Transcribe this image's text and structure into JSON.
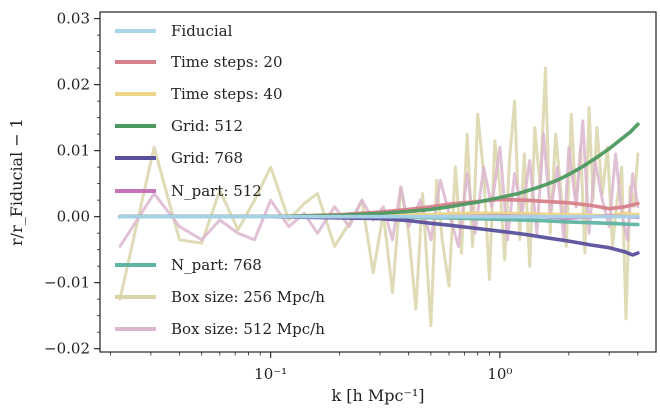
{
  "chart_data": {
    "type": "line",
    "xlabel": "k [h Mpc⁻¹]",
    "ylabel": "r/r_Fiducial − 1",
    "xscale": "log",
    "xlim": [
      0.018,
      4.8
    ],
    "ylim": [
      -0.0205,
      0.031
    ],
    "xticks": [
      {
        "value": 0.1,
        "label": "10⁻¹"
      },
      {
        "value": 1,
        "label": "10⁰"
      }
    ],
    "yticks": [
      {
        "value": -0.02,
        "label": "−0.02"
      },
      {
        "value": -0.01,
        "label": "−0.01"
      },
      {
        "value": 0.0,
        "label": "0.00"
      },
      {
        "value": 0.01,
        "label": "0.01"
      },
      {
        "value": 0.02,
        "label": "0.02"
      },
      {
        "value": 0.03,
        "label": "0.03"
      }
    ],
    "grid": false,
    "legend_position": "left",
    "series": [
      {
        "name": "Fiducial",
        "color": "#a9d4ea",
        "x": [
          0.022,
          0.1,
          1,
          4
        ],
        "y": [
          0,
          0,
          0,
          0
        ]
      },
      {
        "name": "Time steps: 20",
        "color": "#d77f8a",
        "x": [
          0.022,
          0.1,
          0.2,
          0.3,
          0.4,
          0.5,
          0.6,
          0.8,
          1.0,
          1.3,
          1.6,
          2.0,
          2.5,
          3.0,
          3.5,
          4.0
        ],
        "y": [
          0,
          0,
          0.0003,
          0.0007,
          0.0011,
          0.0015,
          0.0019,
          0.0023,
          0.0026,
          0.0025,
          0.0023,
          0.0021,
          0.0017,
          0.0012,
          0.0015,
          0.002
        ]
      },
      {
        "name": "Time steps: 40",
        "color": "#eed487",
        "x": [
          0.022,
          0.1,
          0.3,
          0.5,
          0.7,
          1.0,
          1.5,
          2.0,
          2.5,
          3.0,
          3.5,
          4.0
        ],
        "y": [
          0,
          0,
          0.0002,
          0.0003,
          0.0005,
          0.0005,
          0.0004,
          0.0003,
          0.0002,
          0.0001,
          0.0005,
          0.0003
        ]
      },
      {
        "name": "Grid: 512",
        "color": "#4d9961",
        "x": [
          0.022,
          0.1,
          0.2,
          0.3,
          0.4,
          0.5,
          0.6,
          0.7,
          0.8,
          1.0,
          1.2,
          1.4,
          1.6,
          1.8,
          2.0,
          2.3,
          2.6,
          3.0,
          3.4,
          3.7,
          4.0
        ],
        "y": [
          0,
          0,
          0.0002,
          0.0005,
          0.0008,
          0.0011,
          0.0015,
          0.0019,
          0.0022,
          0.0029,
          0.0035,
          0.0042,
          0.0049,
          0.0056,
          0.0064,
          0.0076,
          0.0088,
          0.0103,
          0.0118,
          0.0128,
          0.014
        ]
      },
      {
        "name": "Grid: 768",
        "color": "#58509c",
        "x": [
          0.022,
          0.1,
          0.3,
          0.4,
          0.5,
          0.6,
          0.8,
          1.0,
          1.3,
          1.6,
          2.0,
          2.5,
          3.0,
          3.5,
          3.8,
          4.0
        ],
        "y": [
          0,
          0,
          -0.0003,
          -0.0006,
          -0.001,
          -0.0013,
          -0.0018,
          -0.0022,
          -0.0027,
          -0.0032,
          -0.0037,
          -0.0043,
          -0.0047,
          -0.0053,
          -0.0058,
          -0.0055
        ]
      },
      {
        "name": "N_part: 512",
        "color": "#c673b7",
        "x": [
          0.022,
          0.1,
          0.3,
          0.6,
          1.0,
          1.5,
          2.0,
          3.0,
          4.0
        ],
        "y": [
          0,
          0,
          -0.0001,
          0,
          0.0001,
          0,
          -0.0002,
          0.0001,
          -0.0001
        ]
      },
      {
        "name": "N_part: 768",
        "color": "#5fb4a3",
        "x": [
          0.022,
          0.1,
          0.3,
          0.6,
          1.0,
          1.5,
          2.0,
          3.0,
          4.0
        ],
        "y": [
          0,
          0,
          0,
          -0.0002,
          -0.0004,
          -0.0006,
          -0.0008,
          -0.001,
          -0.0012
        ]
      },
      {
        "name": "Box size: 256 Mpc/h",
        "color": "#d9d5a9",
        "x": [
          0.022,
          0.031,
          0.04,
          0.05,
          0.06,
          0.072,
          0.085,
          0.1,
          0.12,
          0.14,
          0.16,
          0.19,
          0.22,
          0.25,
          0.28,
          0.31,
          0.34,
          0.37,
          0.4,
          0.43,
          0.46,
          0.5,
          0.53,
          0.56,
          0.6,
          0.64,
          0.68,
          0.72,
          0.76,
          0.8,
          0.85,
          0.9,
          0.95,
          1.0,
          1.05,
          1.1,
          1.16,
          1.22,
          1.28,
          1.35,
          1.42,
          1.5,
          1.58,
          1.66,
          1.75,
          1.85,
          1.95,
          2.05,
          2.15,
          2.25,
          2.35,
          2.45,
          2.55,
          2.65,
          2.8,
          2.95,
          3.1,
          3.25,
          3.4,
          3.55,
          3.7,
          3.85,
          4.0
        ],
        "y": [
          -0.0125,
          0.0105,
          -0.0035,
          -0.004,
          0.004,
          -0.002,
          0.0025,
          0.0075,
          -0.0005,
          0.002,
          0.0035,
          -0.0045,
          -0.001,
          0.0025,
          -0.0085,
          0.0005,
          -0.0115,
          0.0045,
          -0.0025,
          -0.014,
          0.0035,
          -0.0165,
          0.0055,
          -0.0035,
          -0.0105,
          0.0075,
          -0.0055,
          0.0125,
          -0.0045,
          0.0155,
          0.0065,
          -0.0095,
          0.0115,
          0.0045,
          -0.0065,
          0.0085,
          0.0175,
          -0.0035,
          0.0095,
          -0.0075,
          0.0135,
          0.0045,
          0.0225,
          -0.0025,
          0.0125,
          0.0035,
          -0.0045,
          0.0155,
          0.0015,
          0.0105,
          -0.0055,
          0.0165,
          0.0025,
          0.0135,
          0.0035,
          0.0105,
          -0.0045,
          0.0025,
          0.0075,
          -0.0155,
          0.0045,
          0.0015,
          0.0095
        ]
      },
      {
        "name": "Box size: 512 Mpc/h",
        "color": "#dcb6cf",
        "x": [
          0.022,
          0.031,
          0.04,
          0.05,
          0.06,
          0.072,
          0.085,
          0.1,
          0.12,
          0.14,
          0.16,
          0.19,
          0.22,
          0.25,
          0.28,
          0.31,
          0.34,
          0.37,
          0.4,
          0.45,
          0.5,
          0.55,
          0.6,
          0.66,
          0.72,
          0.78,
          0.85,
          0.92,
          1.0,
          1.08,
          1.16,
          1.25,
          1.35,
          1.45,
          1.55,
          1.66,
          1.78,
          1.9,
          2.0,
          2.15,
          2.3,
          2.45,
          2.6,
          2.8,
          3.0,
          3.2,
          3.4,
          3.6,
          3.8,
          4.0
        ],
        "y": [
          -0.0045,
          0.0035,
          -0.0015,
          -0.0035,
          -0.0005,
          -0.0025,
          -0.0035,
          0.0025,
          -0.0015,
          0.0005,
          -0.0025,
          0.0015,
          -0.0015,
          0.0025,
          -0.0005,
          0.0015,
          -0.0035,
          0.0045,
          -0.0015,
          0.0025,
          -0.0035,
          0.0055,
          0.0005,
          -0.0045,
          0.0065,
          -0.0025,
          0.0075,
          0.0015,
          0.0105,
          -0.0035,
          0.0065,
          0.0005,
          0.0085,
          -0.0025,
          0.0125,
          0.0005,
          0.0075,
          -0.0035,
          0.0105,
          0.0015,
          0.0145,
          -0.0025,
          0.0085,
          0.0025,
          -0.0015,
          0.0095,
          0.0005,
          -0.0035,
          0.0065,
          0.0015
        ]
      }
    ]
  }
}
